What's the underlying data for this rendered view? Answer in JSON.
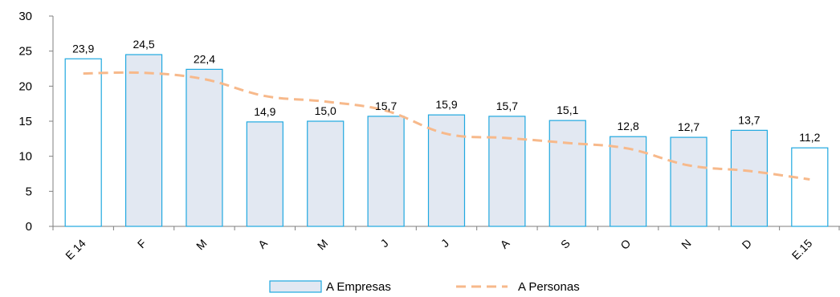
{
  "chart_data": {
    "type": "bar",
    "categories": [
      "E 14",
      "F",
      "M",
      "A",
      "M",
      "J",
      "J",
      "A",
      "S",
      "O",
      "N",
      "D",
      "E.15"
    ],
    "series": [
      {
        "name": "A Empresas",
        "type": "bar",
        "values": [
          23.9,
          24.5,
          22.4,
          14.9,
          15.0,
          15.7,
          15.9,
          15.7,
          15.1,
          12.8,
          12.7,
          13.7,
          11.2
        ],
        "labels": [
          "23,9",
          "24,5",
          "22,4",
          "14,9",
          "15,0",
          "15,7",
          "15,9",
          "15,7",
          "15,1",
          "12,8",
          "12,7",
          "13,7",
          "11,2"
        ]
      },
      {
        "name": "A Personas",
        "type": "line",
        "style": "dashed",
        "values": [
          21.8,
          21.9,
          21.0,
          18.6,
          17.8,
          16.5,
          13.2,
          12.6,
          11.9,
          11.1,
          8.7,
          7.9,
          6.7
        ]
      }
    ],
    "yticks": [
      "0",
      "5",
      "10",
      "15",
      "20",
      "25",
      "30"
    ],
    "ylim": [
      0,
      30
    ],
    "grid": false,
    "legend_position": "bottom",
    "colors": {
      "bar_fill": "#e2e8f2",
      "bar_fill_highlight": "#ffffff",
      "bar_stroke": "#1fa8e0",
      "line": "#f7b98b",
      "axis": "#7f7f7f"
    },
    "highlighted_bars": [
      0,
      12
    ]
  }
}
